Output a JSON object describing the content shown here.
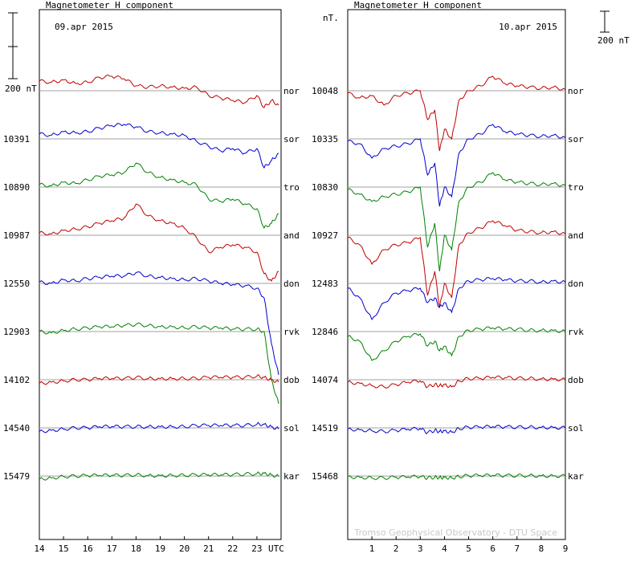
{
  "panels": [
    {
      "title": "Magnetometer H component",
      "date": "09.apr 2015",
      "x_ticks": [
        "14",
        "15",
        "16",
        "17",
        "18",
        "19",
        "20",
        "21",
        "22",
        "23"
      ],
      "x_unit": "UTC",
      "left_labels": [
        "10391",
        "10890",
        "10987",
        "12550",
        "12903",
        "14102",
        "14540",
        "15479"
      ],
      "scale_label": "200 nT"
    },
    {
      "title": "Magnetometer H component",
      "date": "10.apr 2015",
      "x_ticks": [
        "1",
        "2",
        "3",
        "4",
        "5",
        "6",
        "7",
        "8",
        "9"
      ],
      "left_labels": [
        "10048",
        "10335",
        "10830",
        "10927",
        "12483",
        "12846",
        "14074",
        "14519",
        "15468"
      ],
      "left_unit": "nT.",
      "scale_label": "200 nT",
      "watermark": "Tromso Geophysical Observatory - DTU Space"
    }
  ],
  "stations": [
    "nor",
    "sor",
    "tro",
    "and",
    "don",
    "rvk",
    "dob",
    "sol",
    "kar"
  ],
  "colors": {
    "red": "#c00000",
    "blue": "#0000cc",
    "green": "#008000",
    "grid": "#a0a0a0",
    "frame": "#000000",
    "watermark": "#c8c8c8"
  },
  "chart_data": [
    {
      "type": "line",
      "title": "Magnetometer H component",
      "subtitle": "09.apr 2015",
      "x_unit": "UTC",
      "xlim": [
        14,
        24
      ],
      "ylabel": "200 nT",
      "series": [
        {
          "name": "nor",
          "color": "#c00000",
          "baseline": "",
          "x": [
            14,
            14.5,
            15,
            15.5,
            16,
            16.5,
            17,
            17.5,
            18,
            18.5,
            19,
            19.5,
            20,
            20.5,
            21,
            21.5,
            22,
            22.5,
            23,
            23.3,
            23.6,
            23.9
          ],
          "y": [
            40,
            35,
            45,
            30,
            35,
            55,
            60,
            50,
            20,
            15,
            20,
            15,
            10,
            15,
            -20,
            -30,
            -40,
            -50,
            -20,
            -70,
            -40,
            -60
          ]
        },
        {
          "name": "sor",
          "color": "#0000cc",
          "baseline": "10391",
          "x": [
            14,
            14.5,
            15,
            15.5,
            16,
            16.5,
            17,
            17.5,
            18,
            18.5,
            19,
            19.5,
            20,
            20.5,
            21,
            21.5,
            22,
            22.5,
            23,
            23.3,
            23.6,
            23.9
          ],
          "y": [
            20,
            15,
            30,
            25,
            30,
            45,
            55,
            60,
            50,
            30,
            25,
            20,
            15,
            -10,
            -30,
            -50,
            -40,
            -60,
            -40,
            -120,
            -90,
            -60
          ]
        },
        {
          "name": "tro",
          "color": "#008000",
          "baseline": "10890",
          "x": [
            14,
            14.5,
            15,
            15.5,
            16,
            16.5,
            17,
            17.5,
            18,
            18.5,
            19,
            19.5,
            20,
            20.5,
            21,
            21.5,
            22,
            22.5,
            23,
            23.3,
            23.6,
            23.9
          ],
          "y": [
            10,
            5,
            20,
            15,
            30,
            45,
            50,
            60,
            100,
            60,
            40,
            30,
            20,
            10,
            -50,
            -60,
            -50,
            -70,
            -90,
            -170,
            -150,
            -110
          ]
        },
        {
          "name": "and",
          "color": "#c00000",
          "baseline": "10987",
          "x": [
            14,
            14.5,
            15,
            15.5,
            16,
            16.5,
            17,
            17.5,
            18,
            18.5,
            19,
            19.5,
            20,
            20.5,
            21,
            21.5,
            22,
            22.5,
            23,
            23.3,
            23.6,
            23.9
          ],
          "y": [
            10,
            5,
            20,
            25,
            35,
            50,
            60,
            70,
            130,
            80,
            60,
            50,
            30,
            -10,
            -70,
            -50,
            -40,
            -50,
            -70,
            -160,
            -190,
            -150
          ]
        },
        {
          "name": "don",
          "color": "#0000cc",
          "baseline": "12550",
          "x": [
            14,
            14.5,
            15,
            15.5,
            16,
            16.5,
            17,
            17.5,
            18,
            18.5,
            19,
            19.5,
            20,
            20.5,
            21,
            21.5,
            22,
            22.5,
            23,
            23.3,
            23.6,
            23.9
          ],
          "y": [
            5,
            0,
            15,
            10,
            20,
            25,
            30,
            30,
            45,
            30,
            25,
            20,
            15,
            20,
            10,
            0,
            -5,
            -10,
            -20,
            -60,
            -250,
            -380
          ]
        },
        {
          "name": "rvk",
          "color": "#008000",
          "baseline": "12903",
          "x": [
            14,
            14.5,
            15,
            15.5,
            16,
            16.5,
            17,
            17.5,
            18,
            18.5,
            19,
            19.5,
            20,
            20.5,
            21,
            21.5,
            22,
            22.5,
            23,
            23.3,
            23.6,
            23.9
          ],
          "y": [
            0,
            -5,
            5,
            10,
            15,
            20,
            20,
            25,
            30,
            25,
            20,
            20,
            15,
            20,
            15,
            15,
            10,
            10,
            10,
            0,
            -200,
            -300
          ]
        },
        {
          "name": "dob",
          "color": "#c00000",
          "baseline": "14102",
          "x": [
            14,
            14.5,
            15,
            15.5,
            16,
            16.5,
            17,
            17.5,
            18,
            18.5,
            19,
            19.5,
            20,
            20.5,
            21,
            21.5,
            22,
            22.5,
            23,
            23.3,
            23.6,
            23.9
          ],
          "y": [
            -15,
            -10,
            -5,
            0,
            0,
            5,
            5,
            5,
            10,
            5,
            5,
            5,
            5,
            5,
            10,
            10,
            10,
            10,
            15,
            10,
            0,
            -10
          ]
        },
        {
          "name": "sol",
          "color": "#0000cc",
          "baseline": "14540",
          "x": [
            14,
            14.5,
            15,
            15.5,
            16,
            16.5,
            17,
            17.5,
            18,
            18.5,
            19,
            19.5,
            20,
            20.5,
            21,
            21.5,
            22,
            22.5,
            23,
            23.3,
            23.6,
            23.9
          ],
          "y": [
            -15,
            -10,
            -5,
            0,
            0,
            5,
            5,
            5,
            5,
            5,
            5,
            5,
            5,
            10,
            10,
            10,
            10,
            10,
            15,
            15,
            5,
            -5
          ]
        },
        {
          "name": "kar",
          "color": "#008000",
          "baseline": "15479",
          "x": [
            14,
            14.5,
            15,
            15.5,
            16,
            16.5,
            17,
            17.5,
            18,
            18.5,
            19,
            19.5,
            20,
            20.5,
            21,
            21.5,
            22,
            22.5,
            23,
            23.3,
            23.6,
            23.9
          ],
          "y": [
            -12,
            -8,
            -2,
            0,
            2,
            3,
            3,
            3,
            5,
            2,
            2,
            3,
            3,
            5,
            5,
            5,
            6,
            8,
            10,
            12,
            5,
            -2
          ]
        }
      ]
    },
    {
      "type": "line",
      "title": "Magnetometer H component",
      "subtitle": "10.apr 2015",
      "xlim": [
        0,
        9
      ],
      "ylabel": "200 nT",
      "series": [
        {
          "name": "nor",
          "color": "#c00000",
          "baseline": "10048",
          "x": [
            0,
            0.5,
            1,
            1.5,
            2,
            2.5,
            3,
            3.3,
            3.6,
            3.8,
            4,
            4.3,
            4.6,
            5,
            5.5,
            6,
            6.5,
            7,
            7.5,
            8,
            8.5,
            9
          ],
          "y": [
            -10,
            -30,
            -20,
            -60,
            -20,
            -10,
            0,
            -120,
            -80,
            -250,
            -160,
            -200,
            -40,
            0,
            20,
            60,
            30,
            20,
            15,
            10,
            15,
            5
          ]
        },
        {
          "name": "sor",
          "color": "#0000cc",
          "baseline": "10335",
          "x": [
            0,
            0.5,
            1,
            1.5,
            2,
            2.5,
            3,
            3.3,
            3.6,
            3.8,
            4,
            4.3,
            4.6,
            5,
            5.5,
            6,
            6.5,
            7,
            7.5,
            8,
            8.5,
            9
          ],
          "y": [
            -10,
            -20,
            -80,
            -40,
            -30,
            -20,
            0,
            -150,
            -100,
            -280,
            -200,
            -240,
            -60,
            0,
            20,
            60,
            30,
            20,
            15,
            10,
            15,
            5
          ]
        },
        {
          "name": "tro",
          "color": "#008000",
          "baseline": "10830",
          "x": [
            0,
            0.5,
            1,
            1.5,
            2,
            2.5,
            3,
            3.3,
            3.6,
            3.8,
            4,
            4.3,
            4.6,
            5,
            5.5,
            6,
            6.5,
            7,
            7.5,
            8,
            8.5,
            9
          ],
          "y": [
            -10,
            -30,
            -60,
            -40,
            -30,
            -20,
            0,
            -250,
            -150,
            -350,
            -200,
            -260,
            -60,
            0,
            20,
            60,
            30,
            20,
            15,
            10,
            15,
            5
          ]
        },
        {
          "name": "and",
          "color": "#c00000",
          "baseline": "10927",
          "x": [
            0,
            0.5,
            1,
            1.5,
            2,
            2.5,
            3,
            3.3,
            3.6,
            3.8,
            4,
            4.3,
            4.6,
            5,
            5.5,
            6,
            6.5,
            7,
            7.5,
            8,
            8.5,
            9
          ],
          "y": [
            -10,
            -40,
            -120,
            -60,
            -40,
            -30,
            -10,
            -250,
            -150,
            -300,
            -200,
            -260,
            -40,
            10,
            30,
            60,
            40,
            20,
            15,
            10,
            15,
            5
          ]
        },
        {
          "name": "don",
          "color": "#0000cc",
          "baseline": "12483",
          "x": [
            0,
            0.5,
            1,
            1.5,
            2,
            2.5,
            3,
            3.3,
            3.6,
            3.8,
            4,
            4.3,
            4.6,
            5,
            5.5,
            6,
            6.5,
            7,
            7.5,
            8,
            8.5,
            9
          ],
          "y": [
            -20,
            -60,
            -150,
            -80,
            -40,
            -30,
            -20,
            -80,
            -60,
            -100,
            -80,
            -120,
            -20,
            10,
            15,
            20,
            15,
            10,
            10,
            5,
            10,
            5
          ]
        },
        {
          "name": "rvk",
          "color": "#008000",
          "baseline": "12846",
          "x": [
            0,
            0.5,
            1,
            1.5,
            2,
            2.5,
            3,
            3.3,
            3.6,
            3.8,
            4,
            4.3,
            4.6,
            5,
            5.5,
            6,
            6.5,
            7,
            7.5,
            8,
            8.5,
            9
          ],
          "y": [
            -20,
            -40,
            -120,
            -80,
            -40,
            -20,
            -10,
            -60,
            -40,
            -80,
            -60,
            -100,
            -20,
            5,
            10,
            15,
            10,
            10,
            5,
            5,
            5,
            0
          ]
        },
        {
          "name": "dob",
          "color": "#c00000",
          "baseline": "14074",
          "x": [
            0,
            0.5,
            1,
            1.5,
            2,
            2.5,
            3,
            3.3,
            3.6,
            3.8,
            4,
            4.3,
            4.6,
            5,
            5.5,
            6,
            6.5,
            7,
            7.5,
            8,
            8.5,
            9
          ],
          "y": [
            -10,
            -15,
            -25,
            -30,
            -20,
            -10,
            -5,
            -30,
            -20,
            -25,
            -20,
            -30,
            -5,
            5,
            5,
            10,
            8,
            6,
            5,
            3,
            3,
            0
          ]
        },
        {
          "name": "sol",
          "color": "#0000cc",
          "baseline": "14519",
          "x": [
            0,
            0.5,
            1,
            1.5,
            2,
            2.5,
            3,
            3.3,
            3.6,
            3.8,
            4,
            4.3,
            4.6,
            5,
            5.5,
            6,
            6.5,
            7,
            7.5,
            8,
            8.5,
            9
          ],
          "y": [
            -5,
            -8,
            -12,
            -15,
            -10,
            -6,
            -3,
            -20,
            -10,
            -15,
            -12,
            -18,
            -3,
            3,
            3,
            5,
            4,
            3,
            3,
            2,
            2,
            0
          ]
        },
        {
          "name": "kar",
          "color": "#008000",
          "baseline": "15468",
          "x": [
            0,
            0.5,
            1,
            1.5,
            2,
            2.5,
            3,
            3.3,
            3.6,
            3.8,
            4,
            4.3,
            4.6,
            5,
            5.5,
            6,
            6.5,
            7,
            7.5,
            8,
            8.5,
            9
          ],
          "y": [
            -3,
            -5,
            -8,
            -8,
            -5,
            -4,
            -2,
            -8,
            -5,
            -6,
            -5,
            -8,
            -2,
            2,
            2,
            3,
            2,
            2,
            2,
            1,
            1,
            0
          ]
        }
      ]
    }
  ]
}
